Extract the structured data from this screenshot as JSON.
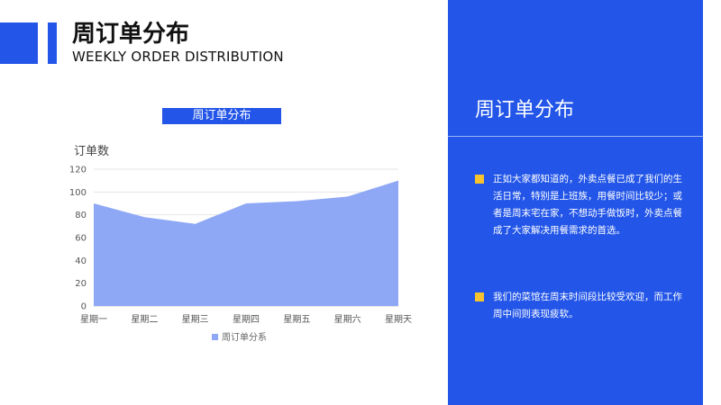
{
  "header": {
    "title": "周订单分布",
    "subtitle": "WEEKLY ORDER DISTRIBUTION"
  },
  "chart_title": "周订单分布",
  "chart_data": {
    "type": "area",
    "title": "",
    "ylabel": "订单数",
    "xlabel": "",
    "categories": [
      "星期一",
      "星期二",
      "星期三",
      "星期四",
      "星期五",
      "星期六",
      "星期天"
    ],
    "series": [
      {
        "name": "周订单分系",
        "values": [
          90,
          78,
          72,
          90,
          92,
          96,
          110
        ],
        "color": "#8fa8f5"
      }
    ],
    "ylim": [
      0,
      120
    ],
    "yticks": [
      0,
      20,
      40,
      60,
      80,
      100,
      120
    ],
    "grid": true,
    "legend": "bottom"
  },
  "panel": {
    "title": "周订单分布",
    "bullets": [
      "正如大家都知道的，外卖点餐已成了我们的生活日常，特别是上班族，用餐时间比较少；或者是周末宅在家，不想动手做饭时，外卖点餐成了大家解决用餐需求的首选。",
      "我们的菜馆在周末时间段比较受欢迎，而工作周中间则表现疲软。"
    ]
  },
  "colors": {
    "accent": "#2255e8",
    "bullet": "#f6c22d",
    "area": "#8fa8f5"
  }
}
